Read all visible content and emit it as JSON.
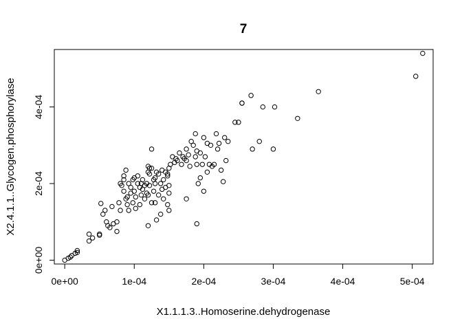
{
  "chart_data": {
    "type": "scatter",
    "title": "7",
    "xlabel": "X1.1.1.3..Homoserine.dehydrogenase",
    "ylabel": "X2.4.1.1..Glycogen.phosphorylase",
    "xlim": [
      -1.5e-05,
      0.00053
    ],
    "ylim": [
      -1e-05,
      0.00055
    ],
    "x_ticks": [
      0,
      0.0001,
      0.0002,
      0.0003,
      0.0004,
      0.0005
    ],
    "x_tick_labels": [
      "0e+00",
      "1e-04",
      "2e-04",
      "3e-04",
      "4e-04",
      "5e-04"
    ],
    "y_ticks": [
      0,
      0.0002,
      0.0004
    ],
    "y_tick_labels": [
      "0e+00",
      "2e-04",
      "4e-04"
    ],
    "grid": false,
    "x": [
      0.0,
      5e-06,
      8e-06,
      1e-05,
      1.5e-05,
      1.8e-05,
      1.8e-05,
      3.5e-05,
      3.5e-05,
      4e-05,
      5e-05,
      5e-05,
      5.2e-05,
      5.5e-05,
      5.8e-05,
      6e-05,
      6.2e-05,
      6.5e-05,
      6.8e-05,
      7e-05,
      7.5e-05,
      7.5e-05,
      7.8e-05,
      8e-05,
      8e-05,
      8.2e-05,
      8.5e-05,
      8.5e-05,
      8.8e-05,
      8.8e-05,
      9e-05,
      9e-05,
      9.2e-05,
      9.2e-05,
      9.5e-05,
      9.5e-05,
      9.8e-05,
      9.8e-05,
      0.0001,
      0.0001,
      0.000102,
      0.000102,
      0.000105,
      0.000105,
      0.000108,
      0.000108,
      0.00011,
      0.00011,
      0.000112,
      0.000112,
      0.000115,
      0.000115,
      0.000118,
      0.000118,
      0.00012,
      0.00012,
      0.00012,
      0.000122,
      0.000122,
      0.000122,
      0.000125,
      0.000125,
      0.000128,
      0.000128,
      0.00013,
      0.00013,
      0.000132,
      0.000132,
      0.000135,
      0.000135,
      0.000138,
      0.000138,
      0.00014,
      0.00014,
      0.000142,
      0.000142,
      0.000145,
      0.000145,
      0.000148,
      0.000148,
      0.00015,
      0.00015,
      0.00015,
      0.000152,
      0.000155,
      0.000158,
      0.00016,
      0.000162,
      0.000165,
      0.000168,
      0.00017,
      0.000172,
      0.000175,
      0.000175,
      0.000178,
      0.00018,
      0.000182,
      0.000185,
      0.000188,
      0.000188,
      0.00019,
      0.00019,
      0.000192,
      0.000195,
      0.000195,
      0.000198,
      0.0002,
      0.0002,
      0.000202,
      0.000205,
      0.000205,
      0.000208,
      0.00021,
      0.000212,
      0.000215,
      0.000218,
      0.00022,
      0.000222,
      0.000225,
      0.000228,
      0.00023,
      0.000232,
      0.000235,
      0.000245,
      0.00025,
      0.000255,
      0.000255,
      0.000268,
      0.00027,
      0.00028,
      0.000285,
      0.0003,
      0.000302,
      0.000335,
      0.000365,
      0.000505,
      0.000515,
      0.000125,
      0.00012,
      0.00019,
      0.000175,
      8.5e-05,
      0.00013,
      0.00015,
      0.000148
    ],
    "y": [
      0.0,
      5e-06,
      8e-06,
      1.2e-05,
      1.8e-05,
      2e-05,
      2.5e-05,
      5e-05,
      6.8e-05,
      5.8e-05,
      6.5e-05,
      6.8e-05,
      0.000148,
      0.00012,
      0.00013,
      0.0001,
      9e-05,
      8.5e-05,
      0.00014,
      9.5e-05,
      0.0001,
      7.5e-05,
      0.00015,
      0.00013,
      0.0002,
      0.000195,
      0.00018,
      0.00022,
      0.00016,
      0.000235,
      0.000165,
      0.000145,
      0.0002,
      0.00013,
      0.000175,
      0.00019,
      0.00021,
      0.00015,
      0.000215,
      0.00018,
      0.000165,
      0.000135,
      0.0002,
      0.00022,
      0.00019,
      0.000145,
      0.00017,
      0.0002,
      0.000185,
      0.00021,
      0.00016,
      0.000195,
      0.000175,
      0.0002,
      9e-05,
      0.00017,
      0.000245,
      0.00024,
      0.000225,
      0.000195,
      0.00029,
      0.00015,
      0.00018,
      0.00021,
      0.00015,
      0.0002,
      0.000105,
      0.00023,
      0.00017,
      0.000225,
      0.00012,
      0.0002,
      0.000185,
      0.000235,
      0.00021,
      0.00016,
      0.00023,
      0.00019,
      0.000145,
      0.00022,
      0.00013,
      0.000175,
      0.00024,
      0.00025,
      0.00027,
      0.000255,
      0.000265,
      0.00026,
      0.00028,
      0.00025,
      0.00027,
      0.000265,
      0.00029,
      0.00016,
      0.000275,
      0.000245,
      0.00031,
      0.0003,
      0.00027,
      0.00033,
      0.000285,
      9.5e-05,
      0.0002,
      0.000215,
      0.00028,
      0.00025,
      0.00032,
      0.00018,
      0.00027,
      0.000305,
      0.00023,
      0.00025,
      0.0003,
      0.000245,
      0.00025,
      0.00033,
      0.00029,
      0.000305,
      0.000235,
      0.000205,
      0.00032,
      0.00026,
      0.00031,
      0.00036,
      0.00036,
      0.00041,
      0.00041,
      0.00043,
      0.00029,
      0.00031,
      0.0004,
      0.00029,
      0.0004,
      0.00037,
      0.00044,
      0.00048,
      0.00054,
      0.00024,
      0.00023,
      0.00025,
      0.00026,
      0.00021,
      0.000215,
      0.000195,
      0.000225
    ]
  }
}
